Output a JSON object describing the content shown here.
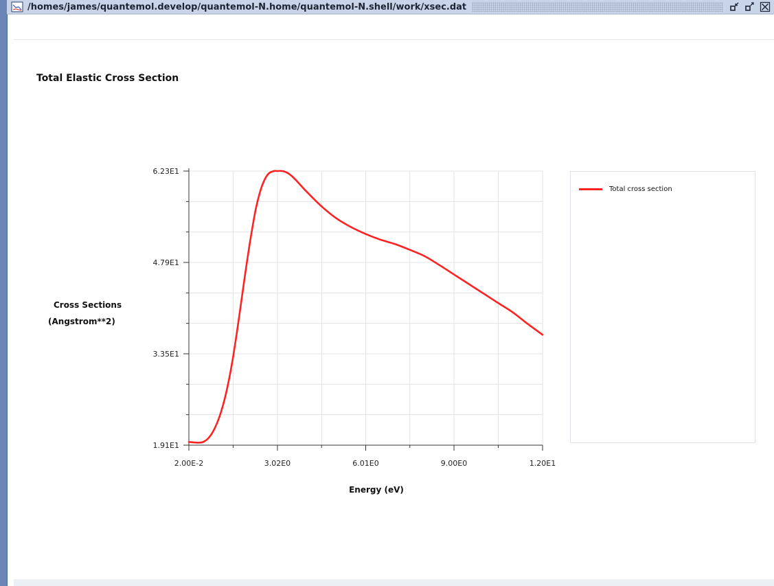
{
  "window": {
    "title": "/homes/james/quantemol.develop/quantemol-N.home/quantemol-N.shell/work/xsec.dat",
    "app_icon": "chart-icon",
    "buttons": [
      "restore-icon",
      "maximize-icon",
      "close-icon"
    ]
  },
  "chart_data": {
    "type": "line",
    "title": "Total Elastic Cross Section",
    "xlabel": "Energy (eV)",
    "ylabel_line1": "Cross Sections",
    "ylabel_line2": "(Angstrom**2)",
    "xlim": [
      0.02,
      12.0
    ],
    "ylim": [
      19.1,
      62.3
    ],
    "x_ticks": [
      0.02,
      3.02,
      6.01,
      9.0,
      12.0
    ],
    "x_tick_labels": [
      "2.00E-2",
      "3.02E0",
      "6.01E0",
      "9.00E0",
      "1.20E1"
    ],
    "y_ticks": [
      19.1,
      33.5,
      47.9,
      62.3
    ],
    "y_tick_labels": [
      "1.91E1",
      "3.35E1",
      "4.79E1",
      "6.23E1"
    ],
    "grid": true,
    "legend_position": "right",
    "series": [
      {
        "name": "Total cross section",
        "color": "#ff2222",
        "x": [
          0.02,
          0.3,
          0.5,
          0.7,
          0.9,
          1.1,
          1.3,
          1.5,
          1.7,
          1.9,
          2.1,
          2.3,
          2.5,
          2.7,
          2.9,
          3.0,
          3.2,
          3.4,
          3.6,
          4.0,
          4.5,
          5.0,
          5.5,
          6.0,
          6.5,
          7.0,
          7.5,
          8.0,
          8.5,
          9.0,
          9.5,
          10.0,
          10.5,
          11.0,
          11.5,
          12.0
        ],
        "y": [
          19.6,
          19.5,
          19.6,
          20.3,
          21.8,
          24.2,
          27.7,
          32.5,
          38.6,
          45.2,
          51.4,
          56.6,
          60.0,
          61.8,
          62.3,
          62.3,
          62.3,
          61.9,
          61.1,
          59.1,
          56.8,
          54.9,
          53.5,
          52.4,
          51.5,
          50.8,
          49.9,
          48.9,
          47.5,
          46.0,
          44.5,
          43.0,
          41.5,
          40.0,
          38.2,
          36.5
        ]
      }
    ]
  }
}
